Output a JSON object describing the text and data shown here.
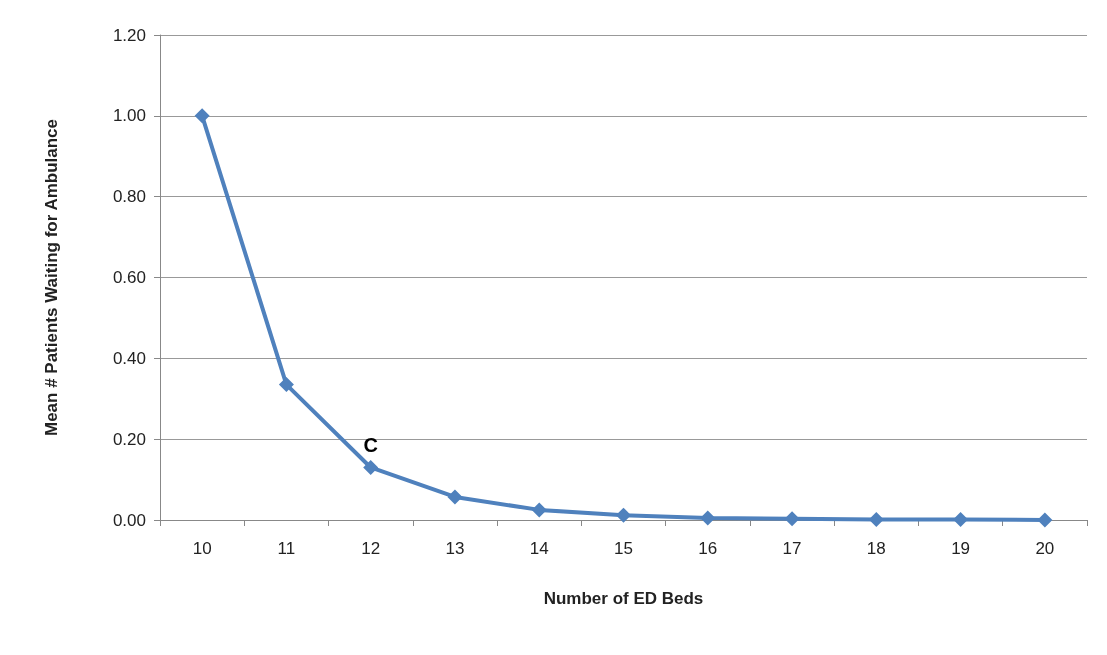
{
  "chart_data": {
    "type": "line",
    "xlabel": "Number of ED Beds",
    "ylabel": "Mean # Patients Waiting for Ambulance",
    "categories": [
      "10",
      "11",
      "12",
      "13",
      "14",
      "15",
      "16",
      "17",
      "18",
      "19",
      "20"
    ],
    "series": [
      {
        "color": "#4f81bd",
        "values": [
          1.0,
          0.335,
          0.13,
          0.057,
          0.025,
          0.012,
          0.005,
          0.003,
          0.001,
          0.001,
          0.0
        ]
      }
    ],
    "ylim": [
      0,
      1.2
    ],
    "yticks": [
      {
        "value": 0,
        "label": "0.00"
      },
      {
        "value": 0.2,
        "label": "0.20"
      },
      {
        "value": 0.4,
        "label": "0.40"
      },
      {
        "value": 0.6,
        "label": "0.60"
      },
      {
        "value": 0.8,
        "label": "0.80"
      },
      {
        "value": 1.0,
        "label": "1.00"
      },
      {
        "value": 1.2,
        "label": "1.20"
      }
    ],
    "grid": "y",
    "marker": "diamond",
    "line_style": "solid",
    "annotations": [
      {
        "text": "C",
        "x": "12",
        "y": 0.13
      }
    ]
  }
}
